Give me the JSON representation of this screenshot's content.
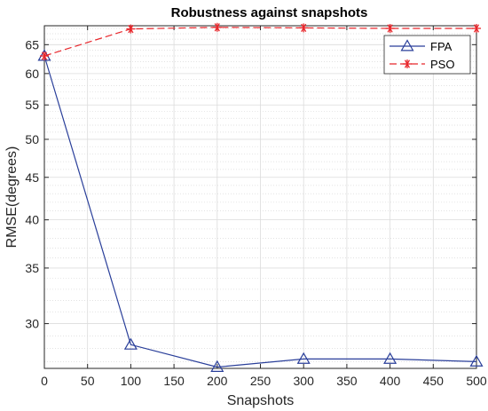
{
  "chart_data": {
    "type": "line",
    "title": "Robustness against snapshots",
    "xlabel": "Snapshots",
    "ylabel": "RMSE(degrees)",
    "xlim": [
      0,
      500
    ],
    "ylim": [
      26.5,
      68.5
    ],
    "yscale": "log",
    "grid": true,
    "minor_grid": true,
    "legend_position": "top-right",
    "x": [
      0,
      100,
      200,
      300,
      400,
      500
    ],
    "x_ticks": [
      0,
      50,
      100,
      150,
      200,
      250,
      300,
      350,
      400,
      450,
      500
    ],
    "y_ticks": [
      30,
      35,
      40,
      45,
      50,
      55,
      60,
      65
    ],
    "series": [
      {
        "name": "FPA",
        "values": [
          63.0,
          28.3,
          26.6,
          27.2,
          27.2,
          27.0
        ],
        "color": "#2a3f9a",
        "marker": "triangle-icon",
        "line": "solid"
      },
      {
        "name": "PSO",
        "values": [
          63.0,
          67.9,
          68.2,
          68.1,
          68.0,
          68.0
        ],
        "color": "#e8262b",
        "marker": "asterisk-icon",
        "line": "dashed"
      }
    ]
  }
}
